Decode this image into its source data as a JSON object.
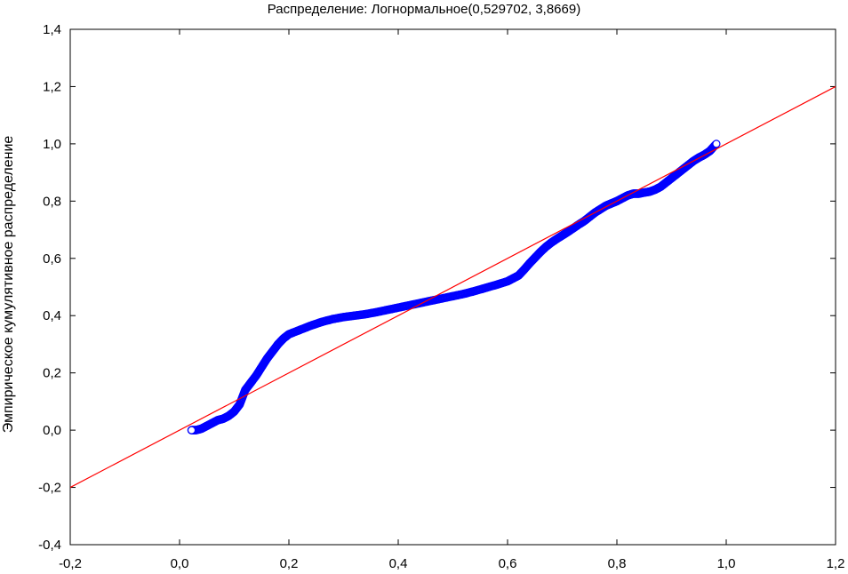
{
  "chart_data": {
    "type": "scatter",
    "title": "Распределение: Логнормальное(0,529702, 3,8669)",
    "xlabel": "",
    "ylabel": "Эмпирическое кумулятивное распределение",
    "xlim": [
      -0.2,
      1.2
    ],
    "ylim": [
      -0.4,
      1.4
    ],
    "x_ticks": [
      "-0,2",
      "0,0",
      "0,2",
      "0,4",
      "0,6",
      "0,8",
      "1,0",
      "1,2"
    ],
    "y_ticks": [
      "-0,4",
      "-0,2",
      "0,0",
      "0,2",
      "0,4",
      "0,6",
      "0,8",
      "1,0",
      "1,2",
      "1,4"
    ],
    "grid": false,
    "legend": "none",
    "series": [
      {
        "kind": "points",
        "color": "#0000ff",
        "points": [
          [
            0.022,
            0.0
          ],
          [
            0.03,
            0.0
          ],
          [
            0.04,
            0.005
          ],
          [
            0.05,
            0.015
          ],
          [
            0.06,
            0.025
          ],
          [
            0.07,
            0.035
          ],
          [
            0.08,
            0.04
          ],
          [
            0.09,
            0.05
          ],
          [
            0.1,
            0.065
          ],
          [
            0.11,
            0.09
          ],
          [
            0.12,
            0.14
          ],
          [
            0.13,
            0.165
          ],
          [
            0.14,
            0.19
          ],
          [
            0.15,
            0.22
          ],
          [
            0.16,
            0.25
          ],
          [
            0.17,
            0.275
          ],
          [
            0.18,
            0.3
          ],
          [
            0.19,
            0.32
          ],
          [
            0.2,
            0.335
          ],
          [
            0.22,
            0.35
          ],
          [
            0.24,
            0.365
          ],
          [
            0.26,
            0.378
          ],
          [
            0.28,
            0.388
          ],
          [
            0.3,
            0.395
          ],
          [
            0.32,
            0.4
          ],
          [
            0.34,
            0.405
          ],
          [
            0.36,
            0.412
          ],
          [
            0.38,
            0.42
          ],
          [
            0.4,
            0.428
          ],
          [
            0.42,
            0.436
          ],
          [
            0.44,
            0.444
          ],
          [
            0.46,
            0.452
          ],
          [
            0.48,
            0.46
          ],
          [
            0.5,
            0.468
          ],
          [
            0.52,
            0.476
          ],
          [
            0.54,
            0.486
          ],
          [
            0.56,
            0.497
          ],
          [
            0.58,
            0.508
          ],
          [
            0.6,
            0.52
          ],
          [
            0.61,
            0.53
          ],
          [
            0.62,
            0.54
          ],
          [
            0.63,
            0.56
          ],
          [
            0.64,
            0.582
          ],
          [
            0.65,
            0.602
          ],
          [
            0.66,
            0.622
          ],
          [
            0.67,
            0.64
          ],
          [
            0.68,
            0.655
          ],
          [
            0.69,
            0.668
          ],
          [
            0.7,
            0.68
          ],
          [
            0.71,
            0.692
          ],
          [
            0.72,
            0.705
          ],
          [
            0.73,
            0.718
          ],
          [
            0.74,
            0.73
          ],
          [
            0.75,
            0.745
          ],
          [
            0.76,
            0.76
          ],
          [
            0.77,
            0.772
          ],
          [
            0.78,
            0.784
          ],
          [
            0.79,
            0.792
          ],
          [
            0.8,
            0.8
          ],
          [
            0.81,
            0.81
          ],
          [
            0.82,
            0.82
          ],
          [
            0.83,
            0.826
          ],
          [
            0.84,
            0.826
          ],
          [
            0.85,
            0.83
          ],
          [
            0.86,
            0.833
          ],
          [
            0.87,
            0.84
          ],
          [
            0.88,
            0.85
          ],
          [
            0.89,
            0.865
          ],
          [
            0.9,
            0.88
          ],
          [
            0.91,
            0.895
          ],
          [
            0.92,
            0.91
          ],
          [
            0.93,
            0.925
          ],
          [
            0.94,
            0.94
          ],
          [
            0.95,
            0.952
          ],
          [
            0.96,
            0.962
          ],
          [
            0.97,
            0.975
          ],
          [
            0.982,
            1.0
          ]
        ]
      },
      {
        "kind": "line",
        "color": "#ff0000",
        "points": [
          [
            -0.2,
            -0.2
          ],
          [
            1.2,
            1.2
          ]
        ]
      }
    ]
  }
}
